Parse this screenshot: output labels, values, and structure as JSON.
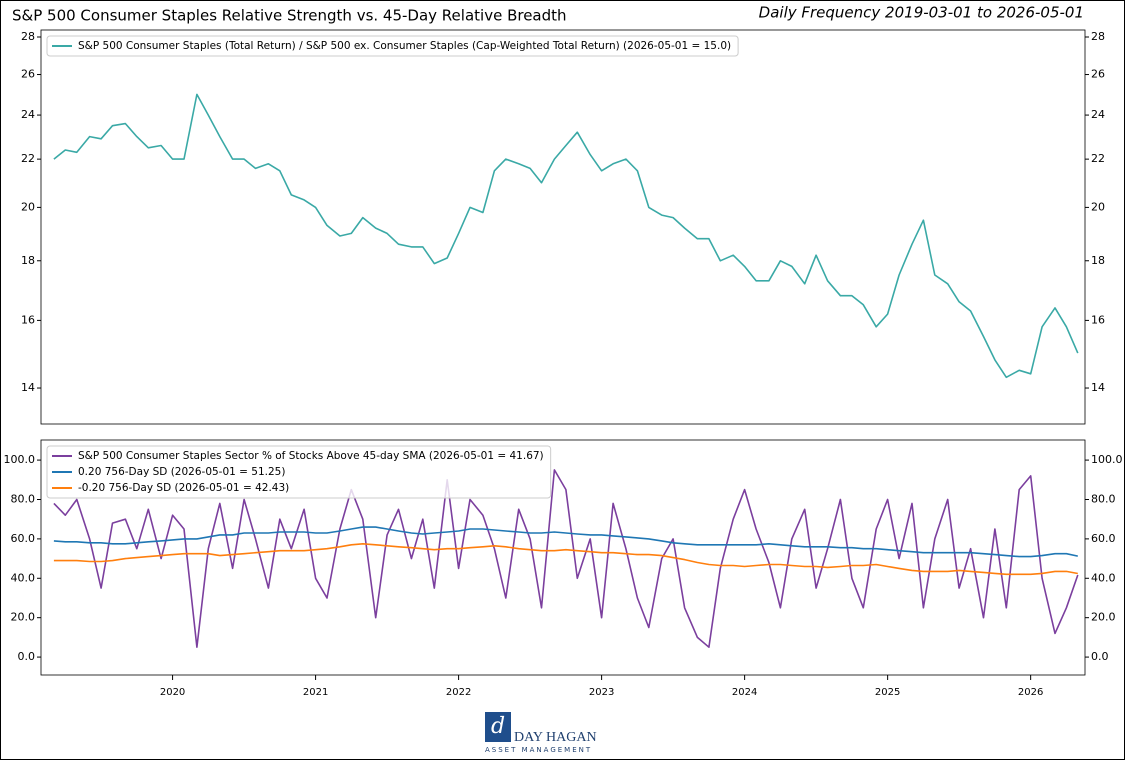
{
  "chart_data": [
    {
      "type": "line",
      "title": "S&P 500 Consumer Staples Relative Strength vs. 45-Day Relative Breadth",
      "subtitle": "Daily Frequency 2019-03-01 to 2026-05-01",
      "log_scale": true,
      "legend": "upper left",
      "x": [
        2019.17,
        2019.25,
        2019.33,
        2019.42,
        2019.5,
        2019.58,
        2019.67,
        2019.75,
        2019.83,
        2019.92,
        2020,
        2020.08,
        2020.17,
        2020.25,
        2020.33,
        2020.42,
        2020.5,
        2020.58,
        2020.67,
        2020.75,
        2020.83,
        2020.92,
        2021,
        2021.08,
        2021.17,
        2021.25,
        2021.33,
        2021.42,
        2021.5,
        2021.58,
        2021.67,
        2021.75,
        2021.83,
        2021.92,
        2022,
        2022.08,
        2022.17,
        2022.25,
        2022.33,
        2022.42,
        2022.5,
        2022.58,
        2022.67,
        2022.75,
        2022.83,
        2022.92,
        2023,
        2023.08,
        2023.17,
        2023.25,
        2023.33,
        2023.42,
        2023.5,
        2023.58,
        2023.67,
        2023.75,
        2023.83,
        2023.92,
        2024,
        2024.08,
        2024.17,
        2024.25,
        2024.33,
        2024.42,
        2024.5,
        2024.58,
        2024.67,
        2024.75,
        2024.83,
        2024.92,
        2025,
        2025.08,
        2025.17,
        2025.25,
        2025.33,
        2025.42,
        2025.5,
        2025.58,
        2025.67,
        2025.75,
        2025.83,
        2025.92,
        2026,
        2026.08,
        2026.17,
        2026.25,
        2026.33
      ],
      "xlim": [
        2019.08,
        2026.38
      ],
      "series": [
        {
          "name": "S&P 500 Consumer Staples (Total Return) / S&P 500 ex. Consumer Staples (Cap-Weighted Total Return) (2026-05-01 = 15.0)",
          "color": "#3aa9a6",
          "values": [
            22.0,
            22.4,
            22.3,
            23.0,
            22.9,
            23.5,
            23.6,
            23.0,
            22.5,
            22.6,
            22.0,
            22.0,
            25.0,
            24.0,
            23.0,
            22.0,
            22.0,
            21.6,
            21.8,
            21.5,
            20.5,
            20.3,
            20.0,
            19.3,
            18.9,
            19.0,
            19.6,
            19.2,
            19.0,
            18.6,
            18.5,
            18.5,
            17.9,
            18.1,
            19.0,
            20.0,
            19.8,
            21.5,
            22.0,
            21.8,
            21.6,
            21.0,
            22.0,
            22.6,
            23.2,
            22.2,
            21.5,
            21.8,
            22.0,
            21.5,
            20.0,
            19.7,
            19.6,
            19.2,
            18.8,
            18.8,
            18.0,
            18.2,
            17.8,
            17.3,
            17.3,
            18.0,
            17.8,
            17.2,
            18.2,
            17.3,
            16.8,
            16.8,
            16.5,
            15.8,
            16.2,
            17.5,
            18.6,
            19.5,
            17.5,
            17.2,
            16.6,
            16.3,
            15.5,
            14.8,
            14.3,
            14.5,
            14.4,
            15.8,
            16.4,
            15.8,
            15.0
          ]
        }
      ],
      "ylim": [
        13.04,
        28.39
      ],
      "yticks": [
        14,
        16,
        18,
        20,
        22,
        24,
        26,
        28
      ]
    },
    {
      "type": "line",
      "legend": "upper left",
      "x": [
        2019.17,
        2019.25,
        2019.33,
        2019.42,
        2019.5,
        2019.58,
        2019.67,
        2019.75,
        2019.83,
        2019.92,
        2020,
        2020.08,
        2020.17,
        2020.25,
        2020.33,
        2020.42,
        2020.5,
        2020.58,
        2020.67,
        2020.75,
        2020.83,
        2020.92,
        2021,
        2021.08,
        2021.17,
        2021.25,
        2021.33,
        2021.42,
        2021.5,
        2021.58,
        2021.67,
        2021.75,
        2021.83,
        2021.92,
        2022,
        2022.08,
        2022.17,
        2022.25,
        2022.33,
        2022.42,
        2022.5,
        2022.58,
        2022.67,
        2022.75,
        2022.83,
        2022.92,
        2023,
        2023.08,
        2023.17,
        2023.25,
        2023.33,
        2023.42,
        2023.5,
        2023.58,
        2023.67,
        2023.75,
        2023.83,
        2023.92,
        2024,
        2024.08,
        2024.17,
        2024.25,
        2024.33,
        2024.42,
        2024.5,
        2024.58,
        2024.67,
        2024.75,
        2024.83,
        2024.92,
        2025,
        2025.08,
        2025.17,
        2025.25,
        2025.33,
        2025.42,
        2025.5,
        2025.58,
        2025.67,
        2025.75,
        2025.83,
        2025.92,
        2026,
        2026.08,
        2026.17,
        2026.25,
        2026.33
      ],
      "xlim": [
        2019.08,
        2026.38
      ],
      "xticks": [
        2020,
        2021,
        2022,
        2023,
        2024,
        2025,
        2026
      ],
      "series": [
        {
          "name": "S&P 500 Consumer Staples Sector % of Stocks Above 45-day SMA (2026-05-01 = 41.67)",
          "color": "#7b3f9e",
          "values": [
            78,
            72,
            80,
            60,
            35,
            68,
            70,
            55,
            75,
            50,
            72,
            65,
            5,
            55,
            78,
            45,
            80,
            60,
            35,
            70,
            55,
            75,
            40,
            30,
            65,
            85,
            70,
            20,
            62,
            75,
            50,
            70,
            35,
            90,
            45,
            80,
            72,
            55,
            30,
            75,
            60,
            25,
            95,
            85,
            40,
            60,
            20,
            78,
            55,
            30,
            15,
            50,
            60,
            25,
            10,
            5,
            45,
            70,
            85,
            65,
            48,
            25,
            60,
            75,
            35,
            55,
            80,
            40,
            25,
            65,
            80,
            50,
            78,
            25,
            60,
            80,
            35,
            55,
            20,
            65,
            25,
            85,
            92,
            40,
            12,
            25,
            41.67
          ]
        },
        {
          "name": "0.20 756-Day SD (2026-05-01 = 51.25)",
          "color": "#1f77b4",
          "values": [
            59,
            58.5,
            58.5,
            58,
            58,
            57.5,
            57.5,
            58,
            58.5,
            59,
            59.5,
            60,
            60,
            61,
            62,
            62,
            63,
            63,
            63,
            63.5,
            63.5,
            63.5,
            63,
            63,
            64,
            65,
            66,
            66,
            65,
            64,
            63,
            62.5,
            63,
            63.5,
            64,
            65,
            65,
            64.5,
            64,
            63.5,
            63,
            63,
            63.5,
            63,
            62.5,
            62,
            62,
            61.5,
            61,
            60.5,
            60,
            59,
            58,
            57.5,
            57,
            57,
            57,
            57,
            57,
            57,
            57.5,
            57,
            56.5,
            56,
            56,
            56,
            55.5,
            55.5,
            55,
            55,
            54.5,
            54,
            53.5,
            53,
            53,
            53,
            53,
            53,
            52.5,
            52,
            51.5,
            51,
            51,
            51.5,
            52.5,
            52.5,
            51.25
          ]
        },
        {
          "name": "-0.20 756-Day SD (2026-05-01 = 42.43)",
          "color": "#ff7f0e",
          "values": [
            49,
            49,
            49,
            48.5,
            48.5,
            49,
            50,
            50.5,
            51,
            51.5,
            52,
            52.5,
            52.5,
            52.5,
            51.5,
            52,
            52.5,
            53,
            53.5,
            54,
            54,
            54,
            54.5,
            55,
            56,
            57,
            57.5,
            57,
            56.5,
            56,
            55.5,
            55,
            54.5,
            55,
            55,
            55.5,
            56,
            56.5,
            56,
            55,
            54.5,
            54,
            54,
            54.5,
            54,
            53.5,
            53,
            53,
            52.5,
            52,
            52,
            51.5,
            50.5,
            49.5,
            48,
            47,
            46.5,
            46.5,
            46,
            46.5,
            47,
            47,
            46.5,
            46,
            46,
            45.5,
            46,
            46.5,
            46.5,
            47,
            46,
            45,
            44,
            43.5,
            43.5,
            43.5,
            44,
            43.5,
            43,
            42.5,
            42,
            42,
            42,
            42.5,
            43.5,
            43.5,
            42.43
          ]
        }
      ],
      "ylim": [
        -9.1,
        110.2
      ],
      "yticks": [
        {
          "value": 0,
          "label": "0.0"
        },
        {
          "value": 20,
          "label": "20.0"
        },
        {
          "value": 40,
          "label": "40.0"
        },
        {
          "value": 60,
          "label": "60.0"
        },
        {
          "value": 80,
          "label": "80.0"
        },
        {
          "value": 100,
          "label": "100.0"
        }
      ]
    }
  ],
  "footer": {
    "brand": "DAY HAGAN",
    "tagline": "ASSET MANAGEMENT"
  }
}
